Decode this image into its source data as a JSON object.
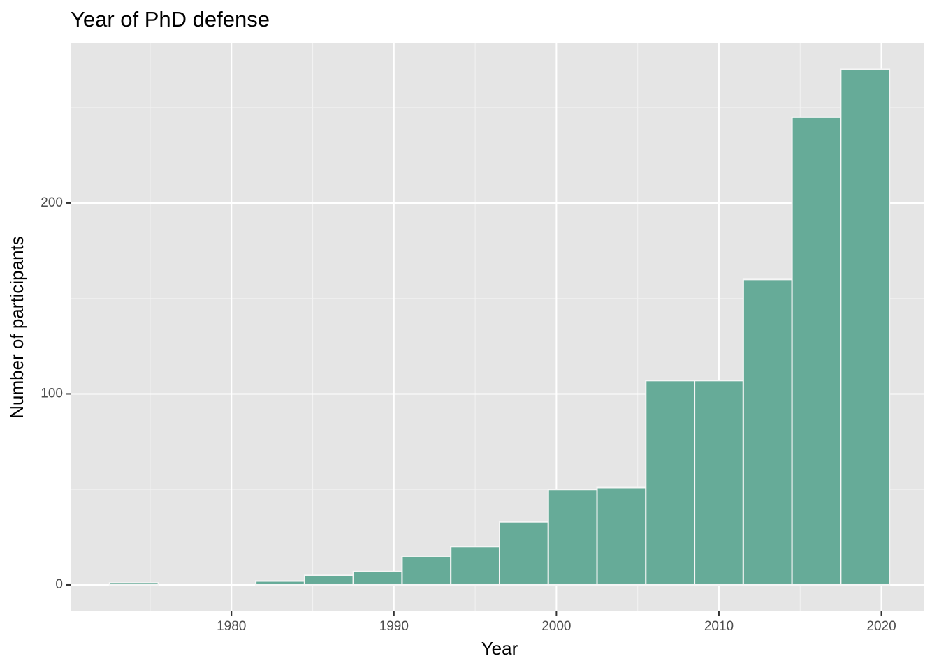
{
  "chart_data": {
    "type": "histogram",
    "title": "Year of PhD defense",
    "x_label": "Year",
    "y_label": "Number of participants",
    "bins": [
      1972.5,
      1975.5,
      1978.5,
      1981.5,
      1984.5,
      1987.5,
      1990.5,
      1993.5,
      1996.5,
      1999.5,
      2002.5,
      2005.5,
      2008.5,
      2011.5,
      2014.5,
      2017.5,
      2020.5
    ],
    "values": [
      1,
      0,
      0,
      2,
      5,
      7,
      15,
      20,
      33,
      50,
      51,
      107,
      107,
      160,
      245,
      270
    ],
    "color": "#66ab98",
    "xlim": [
      1970.1,
      2022.6
    ],
    "xticks": [
      1980,
      1990,
      2000,
      2010,
      2020
    ],
    "ylim": [
      -13.9,
      283.7
    ],
    "yticks": [
      0,
      100,
      200
    ],
    "grid": true
  }
}
